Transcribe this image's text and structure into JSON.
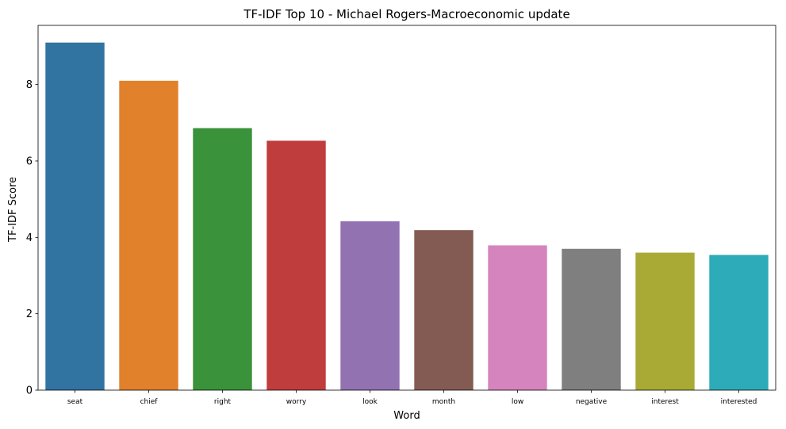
{
  "chart_data": {
    "type": "bar",
    "title": "TF-IDF Top 10 - Michael Rogers-Macroeconomic update",
    "xlabel": "Word",
    "ylabel": "TF-IDF Score",
    "categories": [
      "seat",
      "chief",
      "right",
      "worry",
      "look",
      "month",
      "low",
      "negative",
      "interest",
      "interested"
    ],
    "values": [
      9.1,
      8.1,
      6.86,
      6.53,
      4.42,
      4.19,
      3.79,
      3.7,
      3.6,
      3.54
    ],
    "colors": [
      "#3274a1",
      "#e1812c",
      "#3a923a",
      "#c03d3e",
      "#9372b2",
      "#845b53",
      "#d684bd",
      "#7f7f7f",
      "#a9aa35",
      "#2eabb8"
    ],
    "ylim": [
      0,
      9.55
    ],
    "yticks": [
      0,
      2,
      4,
      6,
      8
    ],
    "grid": false,
    "legend": "none"
  }
}
